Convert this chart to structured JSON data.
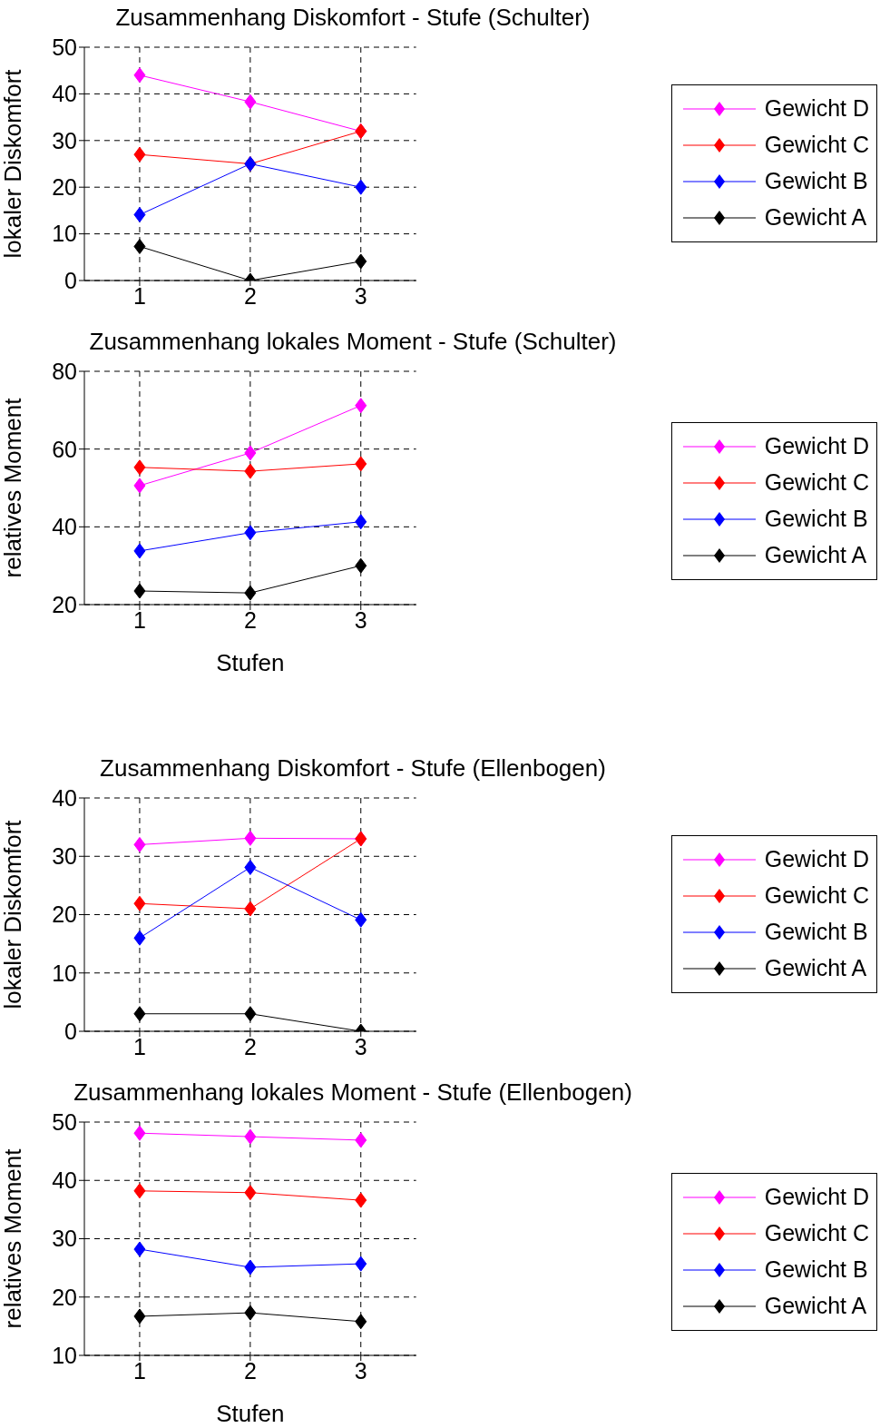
{
  "chart_data": [
    {
      "type": "line",
      "title": "Zusammenhang Diskomfort - Stufe (Schulter)",
      "ylabel": "lokaler Diskomfort",
      "x": [
        1,
        2,
        3
      ],
      "xlim": [
        0.5,
        3.5
      ],
      "xticks": [
        1,
        2,
        3
      ],
      "ylim": [
        0,
        50
      ],
      "yticks": [
        0,
        10,
        20,
        30,
        40,
        50
      ],
      "grid": true,
      "legend": "right",
      "marker": "diamond",
      "line_style": "solid",
      "series": [
        {
          "name": "Gewicht D",
          "color": "#ff00ff",
          "values": [
            44,
            38.3,
            32
          ]
        },
        {
          "name": "Gewicht C",
          "color": "#ff0000",
          "values": [
            27,
            25,
            32
          ]
        },
        {
          "name": "Gewicht B",
          "color": "#0000ff",
          "values": [
            14.1,
            25,
            20
          ]
        },
        {
          "name": "Gewicht A",
          "color": "#000000",
          "values": [
            7.3,
            0,
            4.1
          ]
        }
      ]
    },
    {
      "type": "line",
      "title": "Zusammenhang lokales Moment - Stufe (Schulter)",
      "xlabel": "Stufen",
      "ylabel": "relatives Moment",
      "x": [
        1,
        2,
        3
      ],
      "xlim": [
        0.5,
        3.5
      ],
      "xticks": [
        1,
        2,
        3
      ],
      "ylim": [
        20,
        80
      ],
      "yticks": [
        20,
        40,
        60,
        80
      ],
      "grid": true,
      "legend": "right",
      "marker": "diamond",
      "line_style": "solid",
      "series": [
        {
          "name": "Gewicht D",
          "color": "#ff00ff",
          "values": [
            50.6,
            59,
            71.2
          ]
        },
        {
          "name": "Gewicht C",
          "color": "#ff0000",
          "values": [
            55.3,
            54.3,
            56.2
          ]
        },
        {
          "name": "Gewicht B",
          "color": "#0000ff",
          "values": [
            33.8,
            38.5,
            41.3
          ]
        },
        {
          "name": "Gewicht A",
          "color": "#000000",
          "values": [
            23.5,
            23,
            30
          ]
        }
      ]
    },
    {
      "type": "line",
      "title": "Zusammenhang Diskomfort - Stufe (Ellenbogen)",
      "ylabel": "lokaler Diskomfort",
      "x": [
        1,
        2,
        3
      ],
      "xlim": [
        0.5,
        3.5
      ],
      "xticks": [
        1,
        2,
        3
      ],
      "ylim": [
        0,
        40
      ],
      "yticks": [
        0,
        10,
        20,
        30,
        40
      ],
      "grid": true,
      "legend": "right",
      "marker": "diamond",
      "line_style": "solid",
      "series": [
        {
          "name": "Gewicht D",
          "color": "#ff00ff",
          "values": [
            32,
            33.1,
            33
          ]
        },
        {
          "name": "Gewicht C",
          "color": "#ff0000",
          "values": [
            21.9,
            21,
            33
          ]
        },
        {
          "name": "Gewicht B",
          "color": "#0000ff",
          "values": [
            16,
            28.1,
            19.1
          ]
        },
        {
          "name": "Gewicht A",
          "color": "#000000",
          "values": [
            3,
            3,
            0
          ]
        }
      ]
    },
    {
      "type": "line",
      "title": "Zusammenhang lokales Moment - Stufe (Ellenbogen)",
      "xlabel": "Stufen",
      "ylabel": "relatives Moment",
      "x": [
        1,
        2,
        3
      ],
      "xlim": [
        0.5,
        3.5
      ],
      "xticks": [
        1,
        2,
        3
      ],
      "ylim": [
        10,
        50
      ],
      "yticks": [
        10,
        20,
        30,
        40,
        50
      ],
      "grid": true,
      "legend": "right",
      "marker": "diamond",
      "line_style": "solid",
      "series": [
        {
          "name": "Gewicht D",
          "color": "#ff00ff",
          "values": [
            48.1,
            47.5,
            46.9
          ]
        },
        {
          "name": "Gewicht C",
          "color": "#ff0000",
          "values": [
            38.2,
            37.9,
            36.6
          ]
        },
        {
          "name": "Gewicht B",
          "color": "#0000ff",
          "values": [
            28.2,
            25.1,
            25.7
          ]
        },
        {
          "name": "Gewicht A",
          "color": "#000000",
          "values": [
            16.7,
            17.3,
            15.8
          ]
        }
      ]
    }
  ]
}
